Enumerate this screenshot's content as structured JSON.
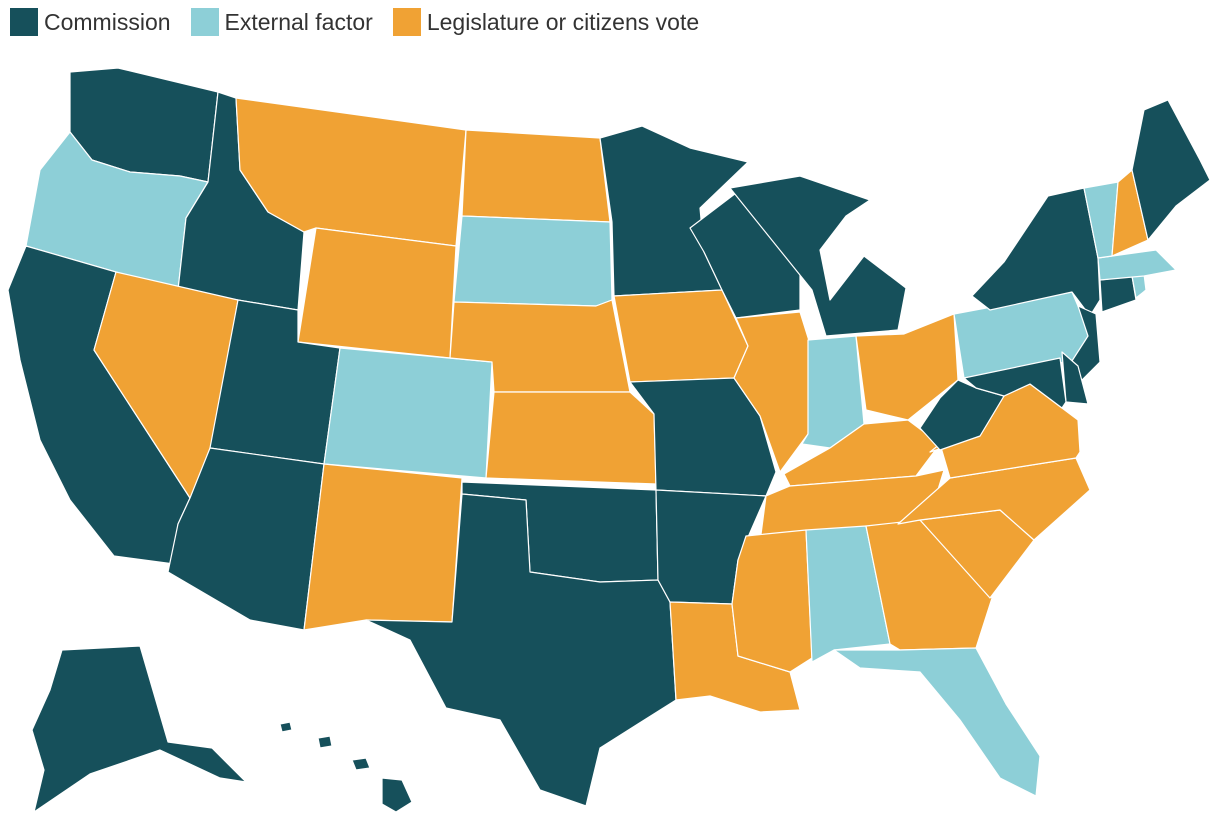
{
  "colors": {
    "commission": "#16505b",
    "external": "#8dcfd7",
    "legislature": "#f0a234"
  },
  "legend": [
    {
      "key": "commission",
      "label": "Commission"
    },
    {
      "key": "external",
      "label": "External factor"
    },
    {
      "key": "legislature",
      "label": "Legislature or citizens vote"
    }
  ],
  "states": {
    "AL": "external",
    "AK": "commission",
    "AZ": "commission",
    "AR": "commission",
    "CA": "commission",
    "CO": "external",
    "CT": "commission",
    "DE": "commission",
    "FL": "external",
    "GA": "legislature",
    "HI": "commission",
    "ID": "commission",
    "IL": "legislature",
    "IN": "external",
    "IA": "legislature",
    "KS": "legislature",
    "KY": "legislature",
    "LA": "legislature",
    "ME": "commission",
    "MD": "commission",
    "MA": "external",
    "MI": "commission",
    "MN": "commission",
    "MS": "legislature",
    "MO": "commission",
    "MT": "legislature",
    "NE": "legislature",
    "NV": "legislature",
    "NH": "legislature",
    "NJ": "commission",
    "NM": "legislature",
    "NY": "commission",
    "NC": "legislature",
    "ND": "legislature",
    "OH": "legislature",
    "OK": "commission",
    "OR": "external",
    "PA": "external",
    "RI": "external",
    "SC": "legislature",
    "SD": "external",
    "TN": "legislature",
    "TX": "commission",
    "UT": "commission",
    "VT": "external",
    "VA": "legislature",
    "WA": "commission",
    "WV": "commission",
    "WI": "commission",
    "WY": "legislature"
  }
}
